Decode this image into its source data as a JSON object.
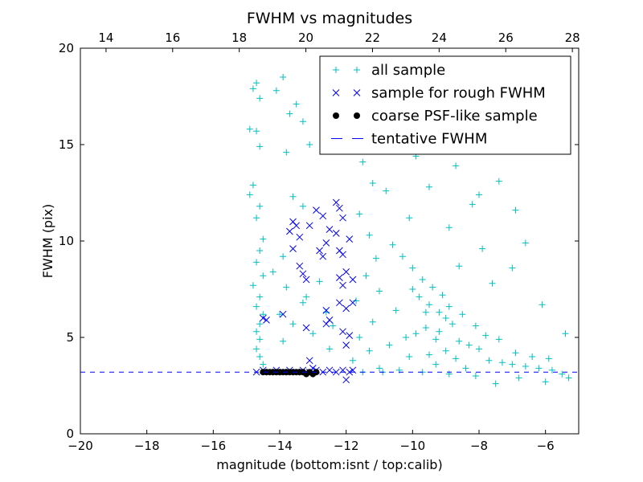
{
  "chart_data": {
    "type": "scatter",
    "title": "FWHM vs magnitudes",
    "xlabel": "magnitude (bottom:isnt / top:calib)",
    "ylabel": "FWHM (pix)",
    "xlim": [
      -20,
      -5
    ],
    "ylim": [
      0,
      20
    ],
    "top_xlim": [
      13.23,
      28.19
    ],
    "xticks": [
      -20,
      -18,
      -16,
      -14,
      -12,
      -10,
      -8,
      -6
    ],
    "xtick_labels": [
      "−20",
      "−18",
      "−16",
      "−14",
      "−12",
      "−10",
      "−8",
      "−6"
    ],
    "top_xticks": [
      14,
      16,
      18,
      20,
      22,
      24,
      26,
      28
    ],
    "top_xtick_labels": [
      "14",
      "16",
      "18",
      "20",
      "22",
      "24",
      "26",
      "28"
    ],
    "yticks": [
      0,
      5,
      10,
      15,
      20
    ],
    "ytick_labels": [
      "0",
      "5",
      "10",
      "15",
      "20"
    ],
    "grid": false,
    "legend_position": "top-right",
    "series": [
      {
        "name": "all sample",
        "marker": "plus",
        "color": "#00bfbf",
        "points": [
          [
            -14.9,
            15.8
          ],
          [
            -14.8,
            17.9
          ],
          [
            -14.7,
            18.2
          ],
          [
            -14.6,
            17.4
          ],
          [
            -14.7,
            15.7
          ],
          [
            -14.6,
            14.9
          ],
          [
            -14.8,
            12.9
          ],
          [
            -14.9,
            12.4
          ],
          [
            -14.6,
            11.8
          ],
          [
            -14.7,
            11.2
          ],
          [
            -14.5,
            10.1
          ],
          [
            -14.6,
            9.5
          ],
          [
            -14.7,
            8.9
          ],
          [
            -14.5,
            8.2
          ],
          [
            -14.8,
            7.7
          ],
          [
            -14.6,
            7.1
          ],
          [
            -14.7,
            6.6
          ],
          [
            -14.5,
            6.2
          ],
          [
            -14.6,
            5.7
          ],
          [
            -14.7,
            5.3
          ],
          [
            -14.6,
            4.9
          ],
          [
            -14.7,
            4.4
          ],
          [
            -14.6,
            4.0
          ],
          [
            -14.5,
            3.6
          ],
          [
            -14.1,
            17.8
          ],
          [
            -13.9,
            18.5
          ],
          [
            -13.7,
            16.6
          ],
          [
            -13.5,
            17.1
          ],
          [
            -13.8,
            14.6
          ],
          [
            -13.3,
            16.2
          ],
          [
            -13.1,
            15.0
          ],
          [
            -13.6,
            12.3
          ],
          [
            -13.3,
            11.8
          ],
          [
            -13.9,
            9.2
          ],
          [
            -14.2,
            8.4
          ],
          [
            -13.8,
            7.6
          ],
          [
            -13.2,
            7.1
          ],
          [
            -14.0,
            6.2
          ],
          [
            -13.6,
            5.7
          ],
          [
            -13.3,
            6.8
          ],
          [
            -13.0,
            5.2
          ],
          [
            -12.8,
            7.9
          ],
          [
            -13.9,
            4.8
          ],
          [
            -12.6,
            6.3
          ],
          [
            -12.5,
            4.4
          ],
          [
            -12.4,
            5.6
          ],
          [
            -11.8,
            16.5
          ],
          [
            -11.5,
            14.1
          ],
          [
            -11.2,
            13.0
          ],
          [
            -11.6,
            11.4
          ],
          [
            -11.3,
            10.3
          ],
          [
            -11.1,
            9.1
          ],
          [
            -11.4,
            8.2
          ],
          [
            -11.0,
            7.4
          ],
          [
            -11.7,
            6.9
          ],
          [
            -11.2,
            5.8
          ],
          [
            -11.6,
            5.0
          ],
          [
            -11.3,
            4.3
          ],
          [
            -11.8,
            3.8
          ],
          [
            -11.0,
            3.4
          ],
          [
            -10.7,
            18.9
          ],
          [
            -10.2,
            17.5
          ],
          [
            -9.6,
            18.2
          ],
          [
            -9.0,
            19.1
          ],
          [
            -8.4,
            17.6
          ],
          [
            -7.8,
            16.9
          ],
          [
            -7.2,
            18.6
          ],
          [
            -10.6,
            15.2
          ],
          [
            -9.9,
            14.4
          ],
          [
            -9.1,
            15.6
          ],
          [
            -8.7,
            13.9
          ],
          [
            -8.0,
            12.4
          ],
          [
            -7.4,
            13.1
          ],
          [
            -6.9,
            11.6
          ],
          [
            -10.8,
            12.6
          ],
          [
            -10.1,
            11.2
          ],
          [
            -9.5,
            12.8
          ],
          [
            -8.9,
            10.7
          ],
          [
            -8.2,
            11.9
          ],
          [
            -6.6,
            9.9
          ],
          [
            -7.0,
            8.6
          ],
          [
            -7.6,
            7.8
          ],
          [
            -10.6,
            9.8
          ],
          [
            -10.3,
            9.2
          ],
          [
            -10.0,
            8.6
          ],
          [
            -9.7,
            8.0
          ],
          [
            -9.4,
            7.6
          ],
          [
            -9.8,
            7.1
          ],
          [
            -9.5,
            6.7
          ],
          [
            -9.2,
            6.3
          ],
          [
            -9.0,
            6.0
          ],
          [
            -8.8,
            5.7
          ],
          [
            -9.6,
            5.5
          ],
          [
            -9.9,
            5.2
          ],
          [
            -10.2,
            5.0
          ],
          [
            -9.3,
            4.9
          ],
          [
            -8.6,
            4.8
          ],
          [
            -8.3,
            4.6
          ],
          [
            -8.0,
            4.4
          ],
          [
            -9.0,
            4.3
          ],
          [
            -9.5,
            4.1
          ],
          [
            -10.1,
            4.0
          ],
          [
            -8.7,
            3.9
          ],
          [
            -7.7,
            3.8
          ],
          [
            -7.3,
            3.7
          ],
          [
            -7.0,
            3.6
          ],
          [
            -6.6,
            3.5
          ],
          [
            -6.2,
            3.4
          ],
          [
            -5.8,
            3.3
          ],
          [
            -5.5,
            3.1
          ],
          [
            -5.3,
            2.9
          ],
          [
            -6.0,
            2.7
          ],
          [
            -6.8,
            2.9
          ],
          [
            -7.5,
            2.6
          ],
          [
            -8.1,
            3.0
          ],
          [
            -8.9,
            3.1
          ],
          [
            -9.7,
            3.2
          ],
          [
            -10.4,
            3.3
          ],
          [
            -10.9,
            3.2
          ],
          [
            -11.5,
            3.2
          ],
          [
            -9.1,
            7.2
          ],
          [
            -8.5,
            6.2
          ],
          [
            -8.1,
            5.6
          ],
          [
            -7.8,
            5.1
          ],
          [
            -7.4,
            4.9
          ],
          [
            -6.9,
            4.2
          ],
          [
            -6.4,
            4.0
          ],
          [
            -5.9,
            3.9
          ],
          [
            -5.4,
            5.2
          ],
          [
            -6.1,
            6.7
          ],
          [
            -9.3,
            3.6
          ],
          [
            -8.4,
            3.4
          ],
          [
            -10.5,
            6.4
          ],
          [
            -10.7,
            4.6
          ],
          [
            -9.2,
            5.3
          ],
          [
            -8.9,
            6.6
          ],
          [
            -9.6,
            6.3
          ],
          [
            -10.0,
            7.5
          ],
          [
            -8.6,
            8.7
          ],
          [
            -7.9,
            9.6
          ]
        ]
      },
      {
        "name": "sample for rough FWHM",
        "marker": "x",
        "color": "#0000ff",
        "points": [
          [
            -14.7,
            3.2
          ],
          [
            -14.5,
            3.3
          ],
          [
            -14.3,
            3.2
          ],
          [
            -14.1,
            3.3
          ],
          [
            -13.9,
            3.2
          ],
          [
            -13.7,
            3.3
          ],
          [
            -13.5,
            3.2
          ],
          [
            -13.3,
            3.3
          ],
          [
            -13.1,
            3.2
          ],
          [
            -12.9,
            3.3
          ],
          [
            -12.7,
            3.2
          ],
          [
            -12.5,
            3.3
          ],
          [
            -12.3,
            3.2
          ],
          [
            -12.1,
            3.3
          ],
          [
            -11.9,
            3.2
          ],
          [
            -11.8,
            3.3
          ],
          [
            -12.0,
            2.8
          ],
          [
            -13.0,
            3.4
          ],
          [
            -14.5,
            6.0
          ],
          [
            -14.4,
            5.9
          ],
          [
            -13.9,
            6.2
          ],
          [
            -13.6,
            11.0
          ],
          [
            -13.5,
            10.8
          ],
          [
            -13.7,
            10.5
          ],
          [
            -13.4,
            10.2
          ],
          [
            -13.6,
            9.6
          ],
          [
            -13.1,
            10.8
          ],
          [
            -13.4,
            8.7
          ],
          [
            -13.3,
            8.3
          ],
          [
            -13.2,
            8.0
          ],
          [
            -13.2,
            5.5
          ],
          [
            -13.1,
            3.8
          ],
          [
            -12.9,
            11.6
          ],
          [
            -12.8,
            9.5
          ],
          [
            -12.7,
            9.2
          ],
          [
            -12.6,
            9.9
          ],
          [
            -12.5,
            10.6
          ],
          [
            -12.7,
            11.3
          ],
          [
            -12.6,
            6.4
          ],
          [
            -12.5,
            5.9
          ],
          [
            -12.6,
            5.7
          ],
          [
            -12.3,
            12.0
          ],
          [
            -12.2,
            11.7
          ],
          [
            -12.1,
            11.2
          ],
          [
            -12.3,
            10.4
          ],
          [
            -12.2,
            9.5
          ],
          [
            -12.1,
            9.3
          ],
          [
            -12.2,
            8.1
          ],
          [
            -12.1,
            7.7
          ],
          [
            -12.0,
            8.4
          ],
          [
            -12.2,
            6.8
          ],
          [
            -12.0,
            6.5
          ],
          [
            -12.1,
            5.3
          ],
          [
            -11.9,
            5.1
          ],
          [
            -11.8,
            6.8
          ],
          [
            -11.9,
            10.1
          ],
          [
            -11.8,
            8.0
          ],
          [
            -12.0,
            4.6
          ]
        ]
      },
      {
        "name": "coarse PSF-like sample",
        "marker": "circle",
        "color": "#000000",
        "points": [
          [
            -14.5,
            3.2
          ],
          [
            -14.4,
            3.2
          ],
          [
            -14.3,
            3.2
          ],
          [
            -14.2,
            3.2
          ],
          [
            -14.1,
            3.2
          ],
          [
            -14.0,
            3.2
          ],
          [
            -13.9,
            3.2
          ],
          [
            -13.8,
            3.2
          ],
          [
            -13.7,
            3.2
          ],
          [
            -13.6,
            3.2
          ],
          [
            -13.5,
            3.2
          ],
          [
            -13.4,
            3.2
          ],
          [
            -13.3,
            3.2
          ],
          [
            -13.2,
            3.1
          ],
          [
            -13.1,
            3.2
          ],
          [
            -13.0,
            3.1
          ],
          [
            -12.9,
            3.2
          ]
        ]
      },
      {
        "name": "tentative FWHM",
        "marker": "dashed-line",
        "color": "#0000ff",
        "y": 3.2
      }
    ]
  }
}
